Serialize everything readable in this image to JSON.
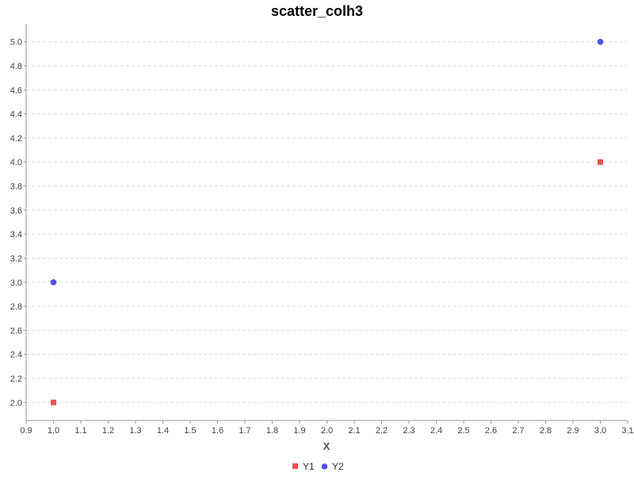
{
  "chart_data": {
    "type": "scatter",
    "title": "scatter_colh3",
    "xlabel": "X",
    "ylabel": "",
    "xlim": [
      0.9,
      3.1
    ],
    "ylim": [
      1.85,
      5.15
    ],
    "x_ticks": [
      0.9,
      1.0,
      1.1,
      1.2,
      1.3,
      1.4,
      1.5,
      1.6,
      1.7,
      1.8,
      1.9,
      2.0,
      2.1,
      2.2,
      2.3,
      2.4,
      2.5,
      2.6,
      2.7,
      2.8,
      2.9,
      3.0,
      3.1
    ],
    "y_ticks": [
      2.0,
      2.2,
      2.4,
      2.6,
      2.8,
      3.0,
      3.2,
      3.4,
      3.6,
      3.8,
      4.0,
      4.2,
      4.4,
      4.6,
      4.8,
      5.0
    ],
    "grid": "horizontal dashed",
    "legend_position": "bottom-center",
    "series": [
      {
        "name": "Y1",
        "marker": "square",
        "color": "#f05050",
        "points": [
          [
            1.0,
            2.0
          ],
          [
            3.0,
            4.0
          ]
        ]
      },
      {
        "name": "Y2",
        "marker": "circle",
        "color": "#5050f0",
        "points": [
          [
            1.0,
            3.0
          ],
          [
            3.0,
            5.0
          ]
        ]
      }
    ]
  }
}
